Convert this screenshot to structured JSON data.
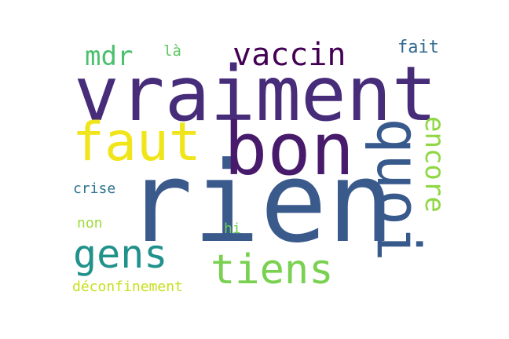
{
  "words": {
    "vraiment": {
      "text": "vraiment",
      "color": "#472c7a"
    },
    "rien": {
      "text": "rien",
      "color": "#3b5a8c"
    },
    "bon": {
      "text": "bon",
      "color": "#481a6c"
    },
    "quoi": {
      "text": "quoi",
      "color": "#38598c"
    },
    "faut": {
      "text": "faut",
      "color": "#f0e51a"
    },
    "vaccin": {
      "text": "vaccin",
      "color": "#440154"
    },
    "gens": {
      "text": "gens",
      "color": "#21918c"
    },
    "tiens": {
      "text": "tiens",
      "color": "#7ad151"
    },
    "encore": {
      "text": "encore",
      "color": "#8fd744"
    },
    "mdr": {
      "text": "mdr",
      "color": "#4ac16d"
    },
    "fait": {
      "text": "fait",
      "color": "#31688e"
    },
    "la": {
      "text": "là",
      "color": "#5ec962"
    },
    "crise": {
      "text": "crise",
      "color": "#2c728e"
    },
    "non": {
      "text": "non",
      "color": "#9fda3a"
    },
    "hi": {
      "text": "hi",
      "color": "#6ece58"
    },
    "deconfinement": {
      "text": "déconfinement",
      "color": "#c8e020"
    }
  }
}
